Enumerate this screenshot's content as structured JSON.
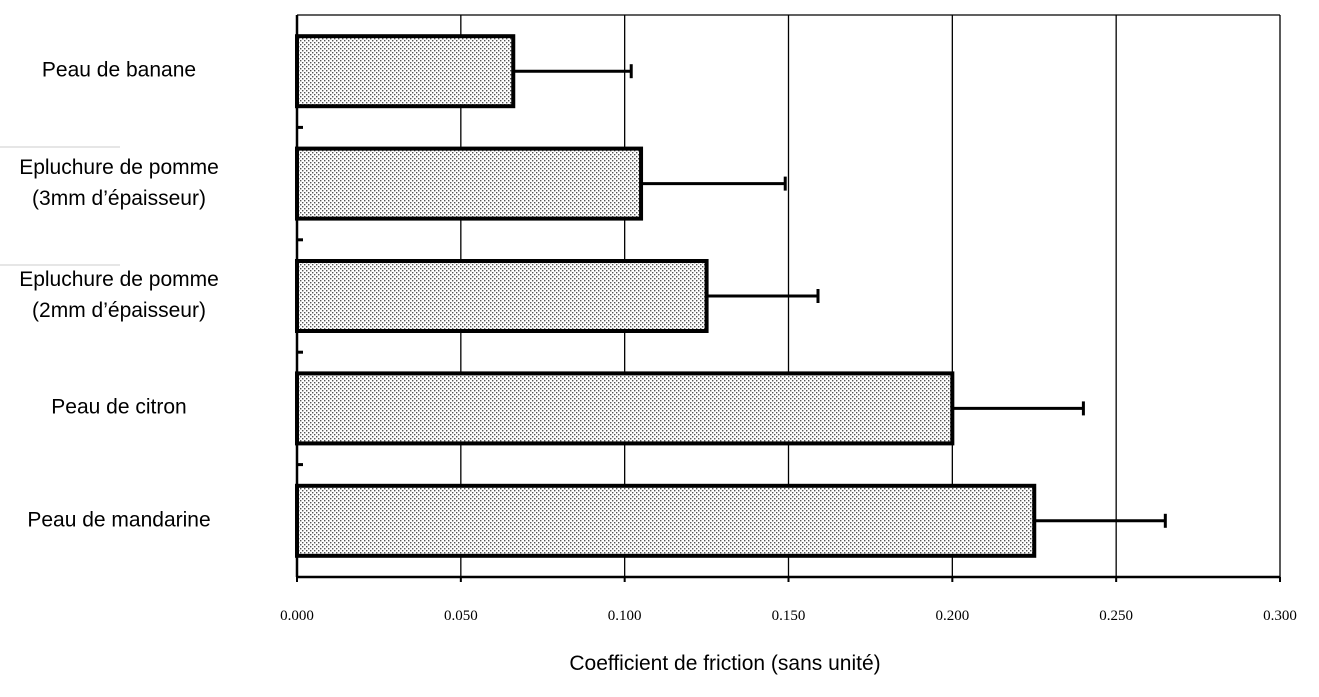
{
  "chart_data": {
    "type": "bar",
    "orientation": "horizontal",
    "categories": [
      "Peau de banane",
      "Epluchure de pomme\n(3mm d’épaisseur)",
      "Epluchure de pomme\n(2mm d’épaisseur)",
      "Peau de citron",
      "Peau de mandarine"
    ],
    "values": [
      0.066,
      0.105,
      0.125,
      0.2,
      0.225
    ],
    "errors": [
      0.036,
      0.044,
      0.034,
      0.04,
      0.04
    ],
    "xlabel": "Coefficient de friction (sans unité)",
    "xlim": [
      0,
      0.3
    ],
    "xticks": [
      {
        "value": 0,
        "label": "0.000"
      },
      {
        "value": 0.05,
        "label": "0.050"
      },
      {
        "value": 0.1,
        "label": "0.100"
      },
      {
        "value": 0.15,
        "label": "0.150"
      },
      {
        "value": 0.2,
        "label": "0.200"
      },
      {
        "value": 0.25,
        "label": "0.250"
      },
      {
        "value": 0.3,
        "label": "0.300"
      }
    ],
    "grid": true
  }
}
